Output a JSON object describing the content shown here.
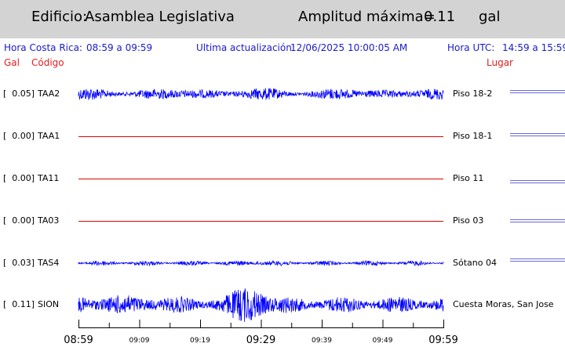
{
  "header": {
    "building_label": "Edificio:",
    "building_name": "Asamblea Legislativa",
    "amplitude_label": "Amplitud máxima=",
    "amplitude_value": "0.11",
    "amplitude_unit": "gal"
  },
  "info": {
    "local_label": "Hora Costa Rica:",
    "local_range": "08:59 a 09:59",
    "update_label": "Ultima actualización:",
    "update_value": "12/06/2025 10:00:05 AM",
    "utc_label": "Hora UTC:",
    "utc_range": "14:59 a 15:59"
  },
  "columns": {
    "gal": "Gal",
    "code": "Código",
    "place": "Lugar"
  },
  "colors": {
    "signal": "#0000ff",
    "flat": "#dd0000",
    "info": "#1a1acc",
    "header_bg": "#d3d3d3"
  },
  "chart_data": {
    "type": "line",
    "x_range": [
      "08:59",
      "09:59"
    ],
    "x_ticks": [
      "08:59",
      "09:09",
      "09:19",
      "09:29",
      "09:39",
      "09:49",
      "09:59"
    ],
    "channels": [
      {
        "value": "[  0.05]",
        "code": "TAA2",
        "location": "Piso 18-2",
        "peak_gal": 0.05,
        "active": true
      },
      {
        "value": "[  0.00]",
        "code": "TAA1",
        "location": "Piso 18-1",
        "peak_gal": 0.0,
        "active": false
      },
      {
        "value": "[  0.00]",
        "code": "TA11",
        "location": "Piso 11",
        "peak_gal": 0.0,
        "active": false
      },
      {
        "value": "[  0.00]",
        "code": "TA03",
        "location": "Piso 03",
        "peak_gal": 0.0,
        "active": false
      },
      {
        "value": "[  0.03]",
        "code": "TAS4",
        "location": "Sótano 04",
        "peak_gal": 0.03,
        "active": true
      },
      {
        "value": "[  0.11]",
        "code": "SION",
        "location": "Cuesta Moras, San Jose",
        "peak_gal": 0.11,
        "active": true
      }
    ]
  }
}
